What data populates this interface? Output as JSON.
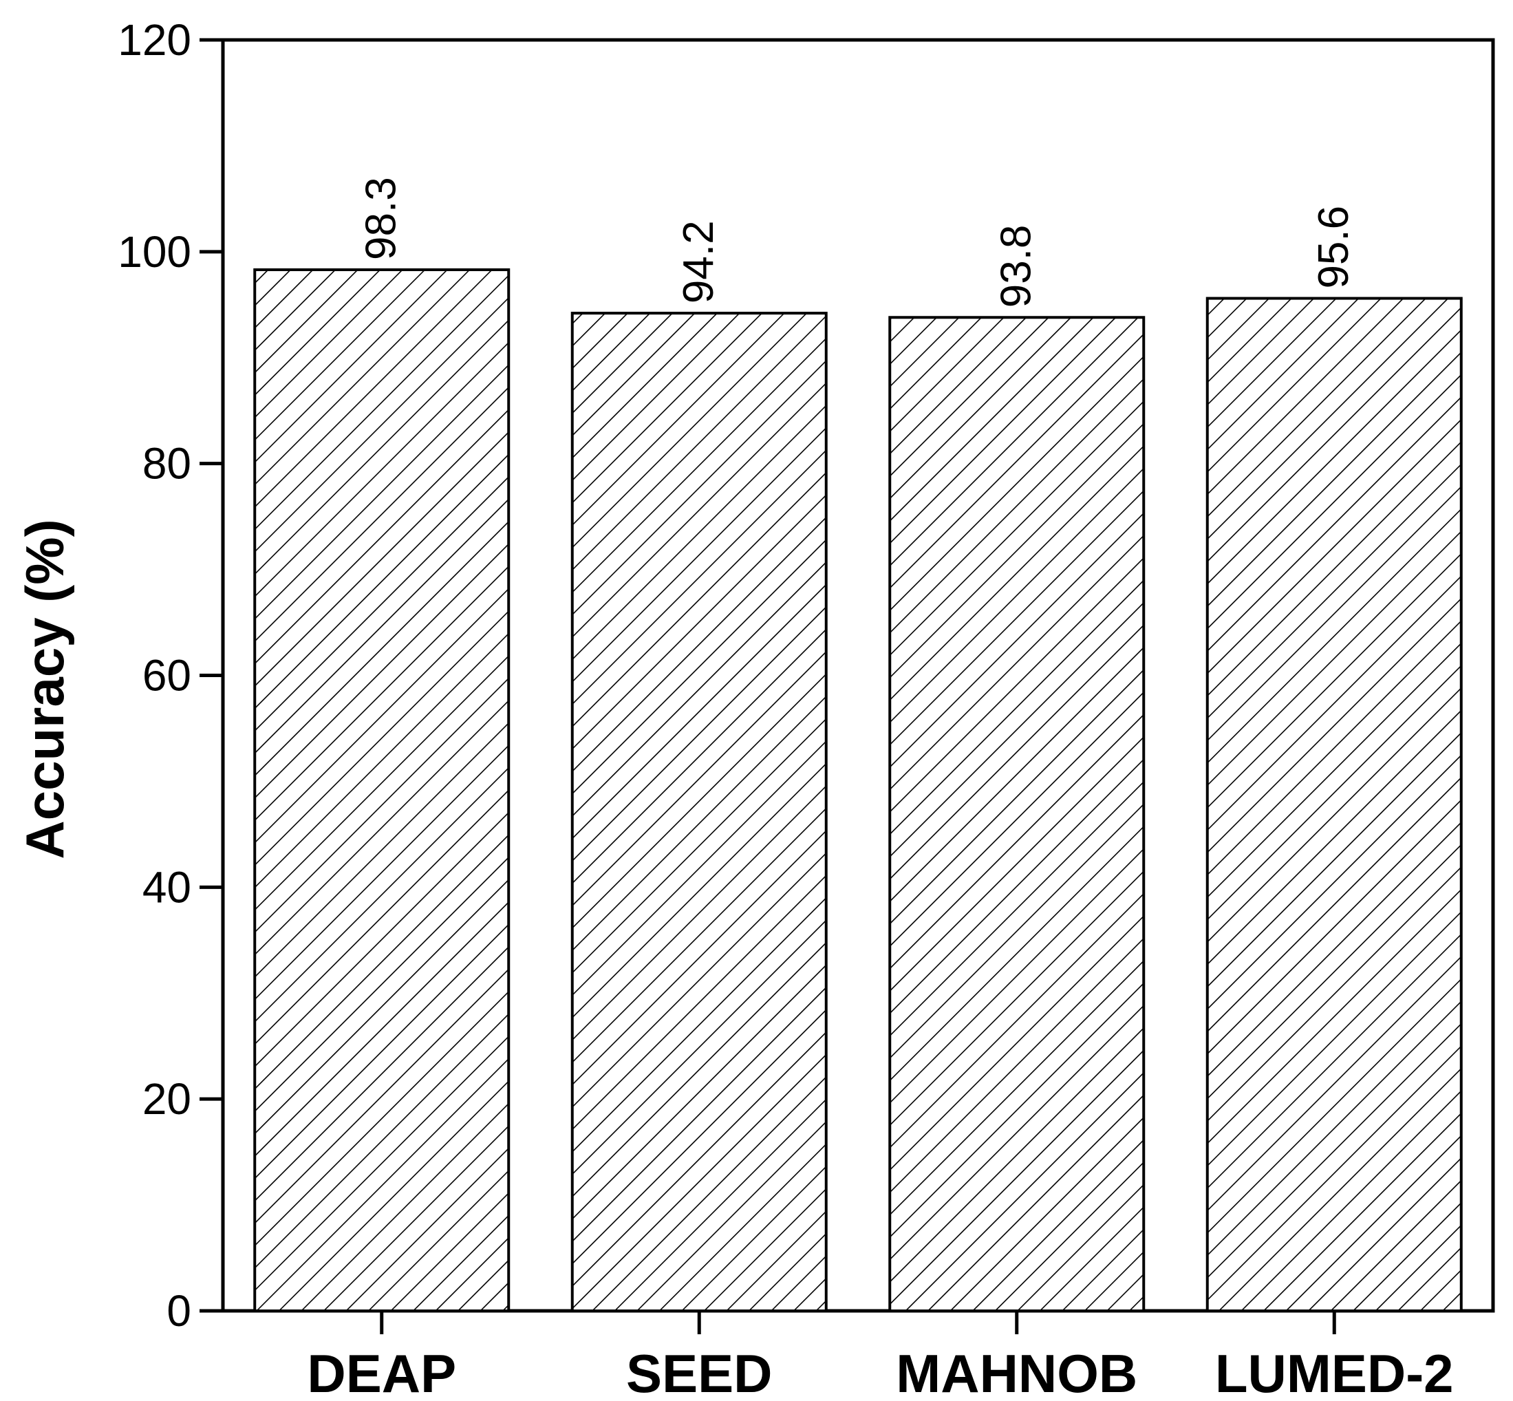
{
  "chart_data": {
    "type": "bar",
    "categories": [
      "DEAP",
      "SEED",
      "MAHNOB",
      "LUMED-2"
    ],
    "values": [
      98.3,
      94.2,
      93.8,
      95.6
    ],
    "data_labels": [
      "98.3",
      "94.2",
      "93.8",
      "95.6"
    ],
    "title": "",
    "xlabel": "",
    "ylabel": "Accuracy (%)",
    "ylim": [
      0,
      120
    ],
    "yticks": [
      0,
      20,
      40,
      60,
      80,
      100,
      120
    ],
    "ytick_labels": [
      "0",
      "20",
      "40",
      "60",
      "80",
      "100",
      "120"
    ],
    "bar_fill": "diagonal hatch",
    "bar_color": "#000000",
    "background": "#ffffff",
    "grid": false,
    "legend": "none"
  }
}
